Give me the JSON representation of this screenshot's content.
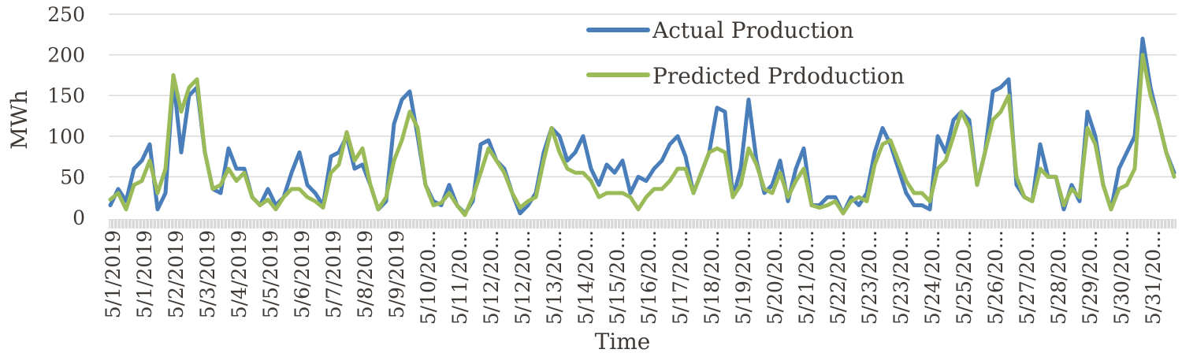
{
  "chart_data": {
    "type": "line",
    "title": "",
    "xlabel": "Time",
    "ylabel": "MWh",
    "ylim": [
      0,
      250
    ],
    "yticks": [
      0,
      50,
      100,
      150,
      200,
      250
    ],
    "grid": true,
    "legend_position": "top-right",
    "x_tick_labels": [
      "5/1/2019",
      "5/1/2019",
      "5/2/2019",
      "5/3/2019",
      "5/4/2019",
      "5/5/2019",
      "5/6/2019",
      "5/7/2019",
      "5/8/2019",
      "5/9/2019",
      "5/10/20...",
      "5/11/20...",
      "5/12/20...",
      "5/12/20...",
      "5/13/20...",
      "5/14/20...",
      "5/15/20...",
      "5/16/20...",
      "5/17/20...",
      "5/18/20...",
      "5/19/20...",
      "5/20/20...",
      "5/21/20...",
      "5/22/20...",
      "5/23/20...",
      "5/23/20...",
      "5/24/20...",
      "5/25/20...",
      "5/26/20...",
      "5/27/20...",
      "5/28/20...",
      "5/29/20...",
      "5/30/20...",
      "5/31/20..."
    ],
    "series": [
      {
        "name": "Actual Production",
        "color": "#4a7ebb",
        "values": [
          15,
          35,
          20,
          60,
          70,
          90,
          10,
          30,
          170,
          80,
          150,
          160,
          80,
          35,
          30,
          85,
          60,
          60,
          25,
          15,
          35,
          15,
          25,
          55,
          80,
          40,
          30,
          15,
          75,
          80,
          100,
          60,
          65,
          40,
          10,
          20,
          115,
          145,
          155,
          100,
          40,
          20,
          15,
          40,
          15,
          5,
          20,
          90,
          95,
          70,
          60,
          30,
          5,
          15,
          30,
          80,
          110,
          100,
          70,
          80,
          100,
          60,
          40,
          65,
          55,
          70,
          30,
          50,
          45,
          60,
          70,
          90,
          100,
          75,
          30,
          55,
          80,
          135,
          130,
          25,
          60,
          145,
          70,
          30,
          40,
          70,
          20,
          60,
          85,
          15,
          15,
          25,
          25,
          5,
          25,
          15,
          30,
          80,
          110,
          90,
          60,
          30,
          15,
          15,
          10,
          100,
          80,
          120,
          130,
          120,
          40,
          80,
          155,
          160,
          170,
          40,
          25,
          20,
          90,
          50,
          50,
          10,
          40,
          20,
          130,
          100,
          40,
          10,
          60,
          80,
          100,
          220,
          160,
          120,
          80,
          55
        ]
      },
      {
        "name": "Predicted Prdoduction",
        "color": "#9bbb59",
        "values": [
          22,
          30,
          10,
          40,
          45,
          70,
          30,
          60,
          175,
          130,
          160,
          170,
          80,
          35,
          40,
          60,
          45,
          55,
          25,
          15,
          22,
          10,
          25,
          35,
          35,
          25,
          20,
          12,
          55,
          65,
          105,
          70,
          85,
          40,
          10,
          25,
          70,
          95,
          130,
          110,
          40,
          15,
          18,
          30,
          15,
          3,
          25,
          55,
          85,
          70,
          55,
          30,
          12,
          20,
          25,
          70,
          110,
          80,
          60,
          55,
          55,
          45,
          25,
          30,
          30,
          30,
          25,
          10,
          25,
          35,
          35,
          45,
          60,
          60,
          30,
          55,
          80,
          85,
          80,
          25,
          40,
          85,
          65,
          35,
          30,
          55,
          25,
          45,
          60,
          15,
          12,
          15,
          20,
          5,
          20,
          25,
          20,
          65,
          90,
          95,
          70,
          45,
          30,
          30,
          20,
          60,
          70,
          100,
          130,
          110,
          40,
          80,
          120,
          130,
          150,
          50,
          25,
          20,
          60,
          50,
          50,
          15,
          35,
          25,
          110,
          90,
          40,
          10,
          35,
          40,
          60,
          200,
          150,
          120,
          80,
          50
        ]
      }
    ]
  }
}
